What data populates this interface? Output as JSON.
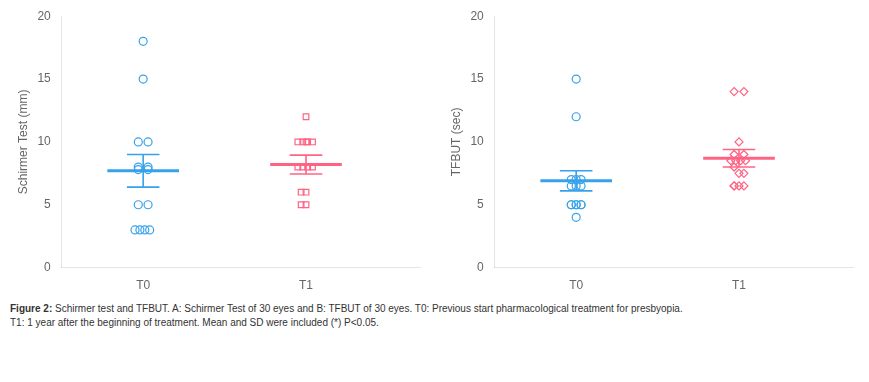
{
  "chart_data": [
    {
      "type": "scatter",
      "ylabel": "Schirmer Test (mm)",
      "xlim": [
        0.5,
        2.7
      ],
      "xticks": [
        {
          "value": 1,
          "label": "T0"
        },
        {
          "value": 2,
          "label": "T1"
        }
      ],
      "ylim": [
        0,
        20
      ],
      "yticks": [
        0,
        5,
        10,
        15,
        20
      ],
      "grid": false,
      "series": [
        {
          "name": "T0",
          "marker": "circle",
          "x": [
            1.0,
            1.0,
            0.97,
            1.03,
            0.97,
            1.03,
            0.97,
            1.03,
            0.97,
            1.03,
            0.95,
            0.98,
            1.01,
            1.04
          ],
          "values": [
            18,
            15,
            10,
            10,
            8,
            8,
            7.8,
            7.8,
            5,
            5,
            3,
            3,
            3,
            3
          ],
          "mean": 7.7,
          "sd": 1.3
        },
        {
          "name": "T1",
          "marker": "square",
          "x": [
            2.0,
            2.0,
            1.95,
            1.98,
            2.01,
            2.04,
            1.95,
            1.98,
            2.01,
            2.04,
            1.97,
            2.0,
            1.97,
            2.0
          ],
          "values": [
            12,
            10,
            10,
            10,
            10,
            10,
            8,
            8,
            8,
            8,
            6,
            6,
            5,
            5
          ],
          "mean": 8.2,
          "sd": 0.75
        }
      ]
    },
    {
      "type": "scatter",
      "ylabel": "TFBUT (sec)",
      "xlim": [
        0.5,
        2.7
      ],
      "xticks": [
        {
          "value": 1,
          "label": "T0"
        },
        {
          "value": 2,
          "label": "T1"
        }
      ],
      "ylim": [
        0,
        20
      ],
      "yticks": [
        0,
        5,
        10,
        15,
        20
      ],
      "grid": false,
      "series": [
        {
          "name": "T0",
          "marker": "circle",
          "x": [
            1.0,
            1.0,
            0.97,
            1.0,
            1.03,
            0.97,
            1.0,
            1.03,
            0.97,
            1.0,
            1.03,
            0.97,
            1.0,
            1.03,
            1.0
          ],
          "values": [
            15,
            12,
            7,
            7,
            7,
            6.5,
            6.5,
            6.5,
            5,
            5,
            5,
            5,
            5,
            5,
            4
          ],
          "mean": 6.9,
          "sd": 0.8
        },
        {
          "name": "T1",
          "marker": "diamond",
          "x": [
            1.97,
            2.03,
            2.0,
            1.97,
            2.03,
            1.95,
            1.98,
            2.01,
            2.04,
            1.97,
            2.0,
            2.03,
            1.97,
            2.0,
            2.03,
            1.97
          ],
          "values": [
            14,
            14,
            10,
            9,
            9,
            8.5,
            8.5,
            8.5,
            8.5,
            8,
            7.5,
            7.5,
            6.5,
            6.5,
            6.5,
            6.5
          ],
          "mean": 8.7,
          "sd": 0.7
        }
      ]
    }
  ],
  "caption": [
    "Figure 2: Schirmer test and TFBUT. A: Schirmer Test of 30 eyes and B: TFBUT of 30 eyes. T0: Previous start pharmacological treatment for presbyopia.",
    "T1: 1 year after the beginning of treatment. Mean and SD were included (*) P<0.05."
  ]
}
